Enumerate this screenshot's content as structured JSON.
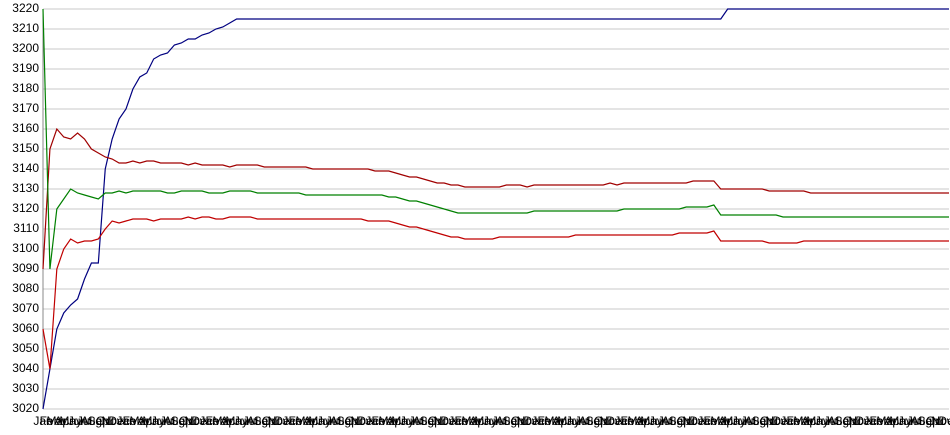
{
  "chart_data": {
    "type": "line",
    "categories": [
      "Jan",
      "Feb",
      "Mar",
      "Apr",
      "May",
      "Jun",
      "Jul",
      "Aug",
      "Sep",
      "Oct",
      "Nov",
      "Dec",
      "Jan",
      "Feb",
      "Mar",
      "Apr",
      "May",
      "Jun",
      "Jul",
      "Aug",
      "Sep",
      "Oct",
      "Nov",
      "Dec",
      "Jan",
      "Feb",
      "Mar",
      "Apr",
      "May",
      "Jun",
      "Jul",
      "Aug",
      "Sep",
      "Oct",
      "Nov",
      "Dec",
      "Jan",
      "Feb",
      "Mar",
      "Apr",
      "May",
      "Jun",
      "Jul",
      "Aug",
      "Sep",
      "Oct",
      "Nov",
      "Dec",
      "Jan",
      "Feb",
      "Mar",
      "Apr",
      "May",
      "Jun",
      "Jul",
      "Aug",
      "Sep",
      "Oct",
      "Nov",
      "Dec",
      "Jan",
      "Feb",
      "Mar",
      "Apr",
      "May",
      "Jun",
      "Jul",
      "Aug",
      "Sep",
      "Oct",
      "Nov",
      "Dec",
      "Jan",
      "Feb",
      "Mar",
      "Apr",
      "May",
      "Jun",
      "Jul",
      "Aug",
      "Sep",
      "Oct",
      "Nov",
      "Dec",
      "Jan",
      "Feb",
      "Mar",
      "Apr",
      "May",
      "Jun",
      "Jul",
      "Aug",
      "Sep",
      "Oct",
      "Nov",
      "Dec",
      "Jan",
      "Feb",
      "Mar",
      "Apr",
      "May",
      "Jun",
      "Jul",
      "Aug",
      "Sep",
      "Oct",
      "Nov",
      "Dec",
      "Jan",
      "Feb",
      "Mar",
      "Apr",
      "May",
      "Jun",
      "Jul",
      "Aug",
      "Sep",
      "Oct",
      "Nov",
      "Dec",
      "Jan",
      "Feb",
      "Mar",
      "Apr",
      "May",
      "Jun",
      "Jul",
      "Aug",
      "Sep",
      "Oct",
      "Nov",
      "Dec"
    ],
    "series": [
      {
        "color": "#000080",
        "values": [
          3020,
          3040,
          3060,
          3068,
          3072,
          3075,
          3085,
          3093,
          3093,
          3140,
          3155,
          3165,
          3170,
          3180,
          3186,
          3188,
          3195,
          3197,
          3198,
          3202,
          3203,
          3205,
          3205,
          3207,
          3208,
          3210,
          3211,
          3213,
          3215,
          3215,
          3215,
          3215,
          3215,
          3215,
          3215,
          3215,
          3215,
          3215,
          3215,
          3215,
          3215,
          3215,
          3215,
          3215,
          3215,
          3215,
          3215,
          3215,
          3215,
          3215,
          3215,
          3215,
          3215,
          3215,
          3215,
          3215,
          3215,
          3215,
          3215,
          3215,
          3215,
          3215,
          3215,
          3215,
          3215,
          3215,
          3215,
          3215,
          3215,
          3215,
          3215,
          3215,
          3215,
          3215,
          3215,
          3215,
          3215,
          3215,
          3215,
          3215,
          3215,
          3215,
          3215,
          3215,
          3215,
          3215,
          3215,
          3215,
          3215,
          3215,
          3215,
          3215,
          3215,
          3215,
          3215,
          3215,
          3215,
          3215,
          3215,
          3220,
          3220,
          3220,
          3220,
          3220,
          3220,
          3220,
          3220,
          3220,
          3220,
          3220,
          3220,
          3220,
          3220,
          3220,
          3220,
          3220,
          3220,
          3220,
          3220,
          3220,
          3220,
          3220,
          3220,
          3220,
          3220,
          3220,
          3220,
          3220,
          3220,
          3220,
          3220,
          3220
        ]
      },
      {
        "color": "#a00000",
        "values": [
          3090,
          3150,
          3160,
          3156,
          3155,
          3158,
          3155,
          3150,
          3148,
          3146,
          3145,
          3143,
          3143,
          3144,
          3143,
          3144,
          3144,
          3143,
          3143,
          3143,
          3143,
          3142,
          3143,
          3142,
          3142,
          3142,
          3142,
          3141,
          3142,
          3142,
          3142,
          3142,
          3141,
          3141,
          3141,
          3141,
          3141,
          3141,
          3141,
          3140,
          3140,
          3140,
          3140,
          3140,
          3140,
          3140,
          3140,
          3140,
          3139,
          3139,
          3139,
          3138,
          3137,
          3136,
          3136,
          3135,
          3134,
          3133,
          3133,
          3132,
          3132,
          3131,
          3131,
          3131,
          3131,
          3131,
          3131,
          3132,
          3132,
          3132,
          3131,
          3132,
          3132,
          3132,
          3132,
          3132,
          3132,
          3132,
          3132,
          3132,
          3132,
          3132,
          3133,
          3132,
          3133,
          3133,
          3133,
          3133,
          3133,
          3133,
          3133,
          3133,
          3133,
          3133,
          3134,
          3134,
          3134,
          3134,
          3130,
          3130,
          3130,
          3130,
          3130,
          3130,
          3130,
          3129,
          3129,
          3129,
          3129,
          3129,
          3129,
          3128,
          3128,
          3128,
          3128,
          3128,
          3128,
          3128,
          3128,
          3128,
          3128,
          3128,
          3128,
          3128,
          3128,
          3128,
          3128,
          3128,
          3128,
          3128,
          3128,
          3128
        ]
      },
      {
        "color": "#008000",
        "values": [
          3220,
          3090,
          3120,
          3125,
          3130,
          3128,
          3127,
          3126,
          3125,
          3128,
          3128,
          3129,
          3128,
          3129,
          3129,
          3129,
          3129,
          3129,
          3128,
          3128,
          3129,
          3129,
          3129,
          3129,
          3128,
          3128,
          3128,
          3129,
          3129,
          3129,
          3129,
          3128,
          3128,
          3128,
          3128,
          3128,
          3128,
          3128,
          3127,
          3127,
          3127,
          3127,
          3127,
          3127,
          3127,
          3127,
          3127,
          3127,
          3127,
          3127,
          3126,
          3126,
          3125,
          3124,
          3124,
          3123,
          3122,
          3121,
          3120,
          3119,
          3118,
          3118,
          3118,
          3118,
          3118,
          3118,
          3118,
          3118,
          3118,
          3118,
          3118,
          3119,
          3119,
          3119,
          3119,
          3119,
          3119,
          3119,
          3119,
          3119,
          3119,
          3119,
          3119,
          3119,
          3120,
          3120,
          3120,
          3120,
          3120,
          3120,
          3120,
          3120,
          3120,
          3121,
          3121,
          3121,
          3121,
          3122,
          3117,
          3117,
          3117,
          3117,
          3117,
          3117,
          3117,
          3117,
          3117,
          3116,
          3116,
          3116,
          3116,
          3116,
          3116,
          3116,
          3116,
          3116,
          3116,
          3116,
          3116,
          3116,
          3116,
          3116,
          3116,
          3116,
          3116,
          3116,
          3116,
          3116,
          3116,
          3116,
          3116,
          3116
        ]
      },
      {
        "color": "#c00000",
        "values": [
          3060,
          3040,
          3090,
          3100,
          3105,
          3103,
          3104,
          3104,
          3105,
          3110,
          3114,
          3113,
          3114,
          3115,
          3115,
          3115,
          3114,
          3115,
          3115,
          3115,
          3115,
          3116,
          3115,
          3116,
          3116,
          3115,
          3115,
          3116,
          3116,
          3116,
          3116,
          3115,
          3115,
          3115,
          3115,
          3115,
          3115,
          3115,
          3115,
          3115,
          3115,
          3115,
          3115,
          3115,
          3115,
          3115,
          3115,
          3114,
          3114,
          3114,
          3114,
          3113,
          3112,
          3111,
          3111,
          3110,
          3109,
          3108,
          3107,
          3106,
          3106,
          3105,
          3105,
          3105,
          3105,
          3105,
          3106,
          3106,
          3106,
          3106,
          3106,
          3106,
          3106,
          3106,
          3106,
          3106,
          3106,
          3107,
          3107,
          3107,
          3107,
          3107,
          3107,
          3107,
          3107,
          3107,
          3107,
          3107,
          3107,
          3107,
          3107,
          3107,
          3108,
          3108,
          3108,
          3108,
          3108,
          3109,
          3104,
          3104,
          3104,
          3104,
          3104,
          3104,
          3104,
          3103,
          3103,
          3103,
          3103,
          3103,
          3104,
          3104,
          3104,
          3104,
          3104,
          3104,
          3104,
          3104,
          3104,
          3104,
          3104,
          3104,
          3104,
          3104,
          3104,
          3104,
          3104,
          3104,
          3104,
          3104,
          3104,
          3104
        ]
      }
    ],
    "ylim": [
      3020,
      3220
    ],
    "yticks": [
      3020,
      3030,
      3040,
      3050,
      3060,
      3070,
      3080,
      3090,
      3100,
      3110,
      3120,
      3130,
      3140,
      3150,
      3160,
      3170,
      3180,
      3190,
      3200,
      3210,
      3220
    ],
    "grid": true
  }
}
